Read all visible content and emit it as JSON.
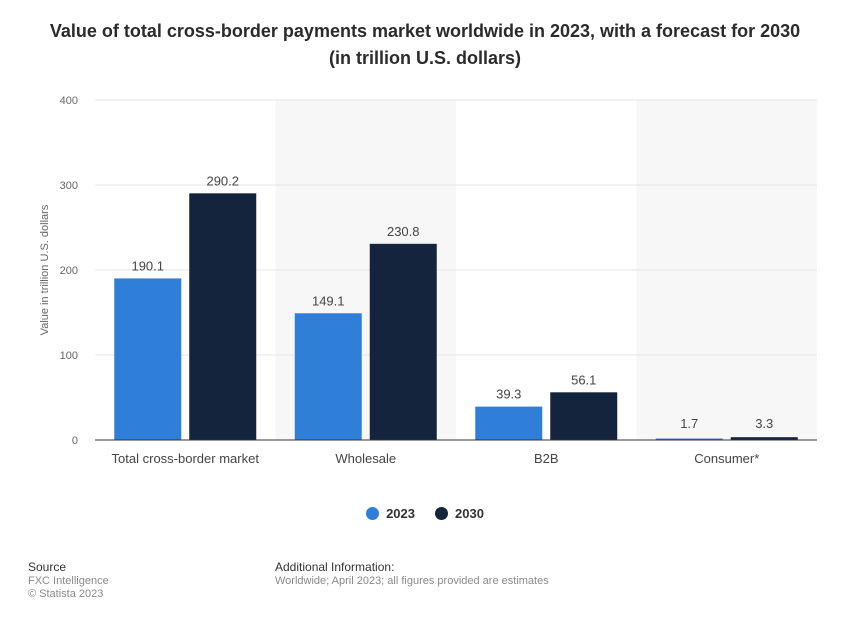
{
  "chart_data": {
    "type": "bar",
    "title": "Value of total cross-border payments market worldwide in 2023, with a forecast for 2030 (in trillion U.S. dollars)",
    "xlabel": "",
    "ylabel": "Value in trillion U.S. dollars",
    "ylim": [
      0,
      400
    ],
    "yticks": [
      0,
      100,
      200,
      300,
      400
    ],
    "categories": [
      "Total cross-border market",
      "Wholesale",
      "B2B",
      "Consumer*"
    ],
    "series": [
      {
        "name": "2023",
        "color": "#2f7ed8",
        "values": [
          190.1,
          149.1,
          39.3,
          1.7
        ],
        "labels": [
          "190.1",
          "149.1",
          "39.3",
          "1.7"
        ]
      },
      {
        "name": "2030",
        "color": "#14243d",
        "values": [
          290.2,
          230.8,
          56.1,
          3.3
        ],
        "labels": [
          "290.2",
          "230.8",
          "56.1",
          "3.3"
        ]
      }
    ],
    "grid": true,
    "legend_position": "bottom"
  },
  "footer": {
    "source_heading": "Source",
    "source_lines": [
      "FXC Intelligence",
      "© Statista 2023"
    ],
    "info_heading": "Additional Information:",
    "info_text": "Worldwide; April 2023; all figures provided are estimates"
  }
}
